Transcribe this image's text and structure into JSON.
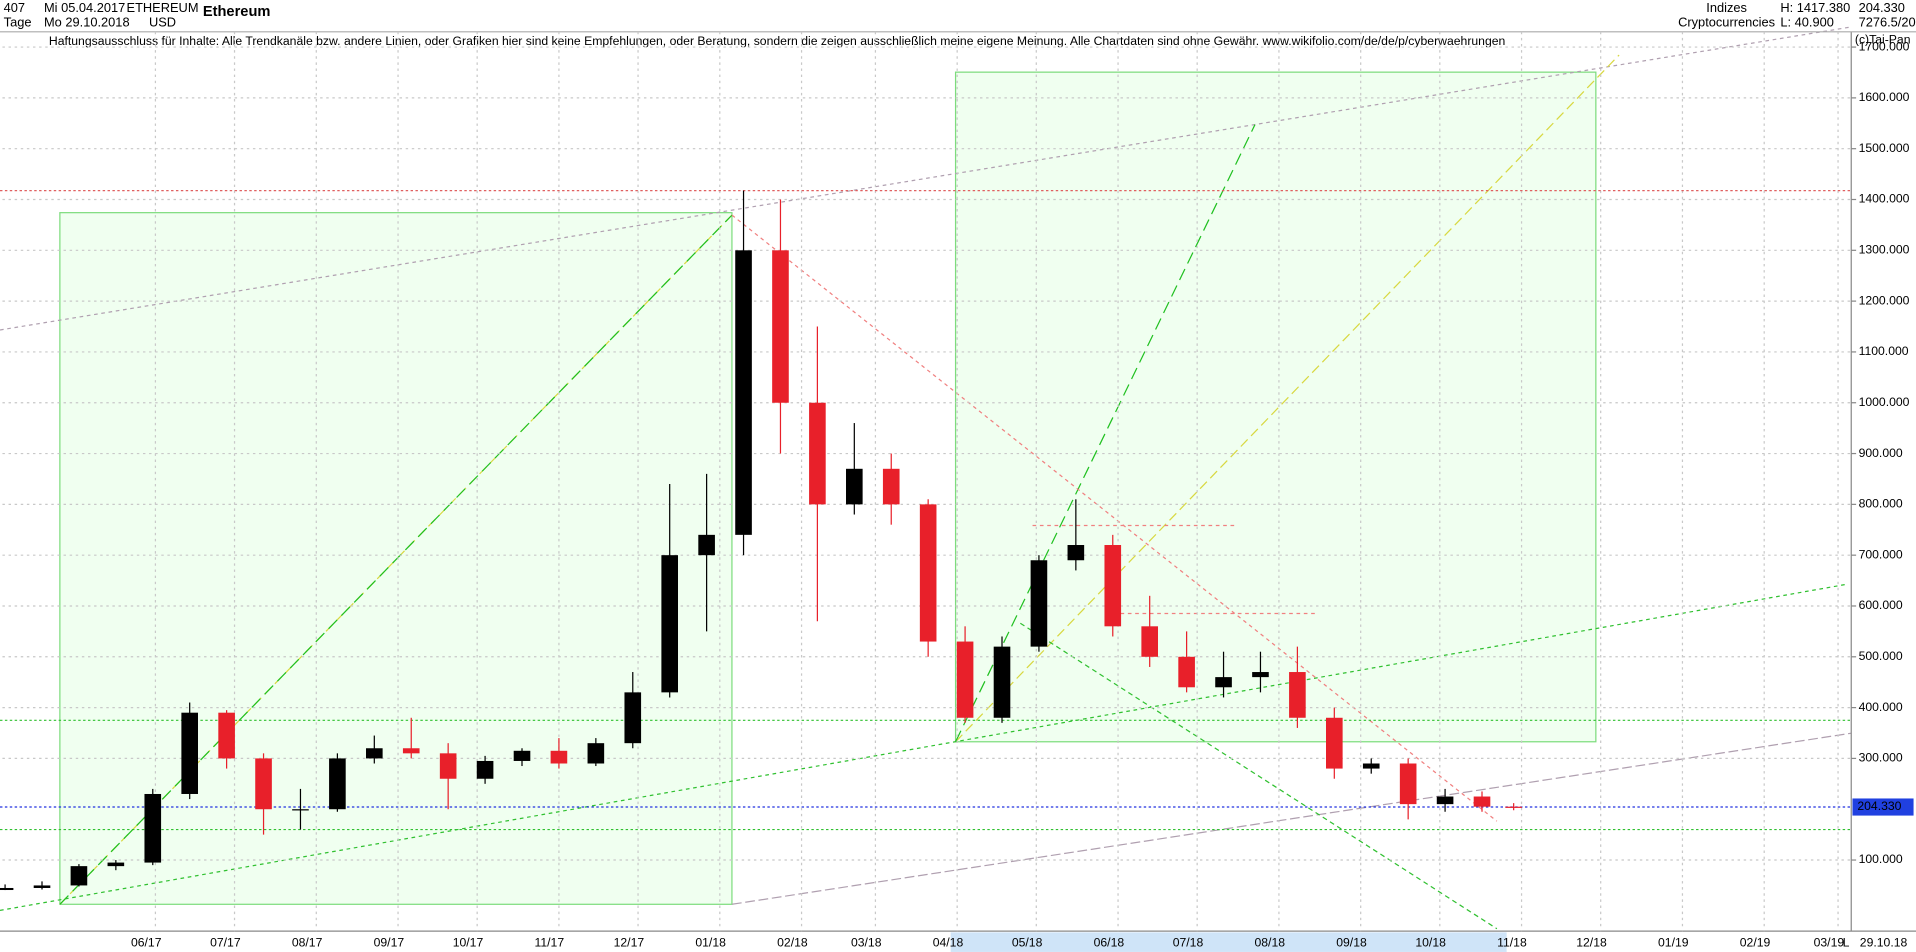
{
  "header": {
    "count": "407",
    "period": "Tage",
    "start": "Mi 05.04.2017",
    "end": "Mo 29.10.2018",
    "symbol": "ETHEREUM",
    "currency": "USD",
    "name": "Ethereum",
    "group": "Indizes",
    "subgroup": "Cryptocurrencies",
    "high": "H: 1417.380",
    "low": "L: 40.900",
    "price": "204.330",
    "volume": "7276.5/20",
    "disclaimer": "Haftungsausschluss für Inhalte: Alle Trendkanäle bzw. andere Linien, oder Grafiken hier sind keine Empfehlungen, oder Beratung, sondern die zeigen ausschließlich meine eigene Meinung. Alle Chartdaten sind ohne Gewähr.  www.wikifolio.com/de/de/p/cyberwaehrungen",
    "copyright": "(c)Tai-Pan",
    "scale": "L",
    "date": "29.10.18"
  },
  "chart_data": {
    "type": "candlestick",
    "x": [
      0,
      14,
      28,
      42,
      56,
      70,
      84,
      98,
      112,
      126,
      140,
      154,
      168,
      182,
      196,
      210,
      224,
      238,
      252,
      266,
      280,
      294,
      308,
      322,
      336,
      350,
      364,
      378,
      392,
      406,
      420,
      434,
      448,
      462,
      476,
      490,
      504,
      518,
      532,
      546,
      560,
      572
    ],
    "open": [
      41,
      45,
      50,
      88,
      95,
      230,
      390,
      300,
      200,
      200,
      300,
      320,
      310,
      260,
      295,
      315,
      290,
      330,
      430,
      700,
      740,
      1300,
      1000,
      800,
      870,
      800,
      530,
      380,
      520,
      690,
      720,
      560,
      500,
      440,
      460,
      470,
      380,
      280,
      290,
      210,
      225,
      205
    ],
    "high": [
      52,
      58,
      92,
      100,
      240,
      410,
      395,
      310,
      240,
      310,
      345,
      380,
      330,
      305,
      320,
      340,
      340,
      470,
      840,
      860,
      1417.38,
      1400,
      1150,
      960,
      900,
      810,
      560,
      540,
      700,
      810,
      740,
      620,
      550,
      510,
      510,
      520,
      400,
      300,
      300,
      240,
      235,
      212
    ],
    "low": [
      40.9,
      42,
      48,
      80,
      90,
      220,
      280,
      150,
      160,
      195,
      290,
      300,
      200,
      250,
      285,
      280,
      285,
      320,
      420,
      550,
      700,
      900,
      570,
      780,
      760,
      500,
      370,
      370,
      510,
      670,
      540,
      480,
      430,
      420,
      430,
      360,
      260,
      270,
      180,
      195,
      195,
      198
    ],
    "close": [
      45,
      50,
      88,
      95,
      230,
      390,
      300,
      200,
      200,
      300,
      320,
      310,
      260,
      295,
      315,
      290,
      330,
      430,
      700,
      740,
      1300,
      1000,
      800,
      870,
      800,
      530,
      380,
      520,
      690,
      720,
      560,
      500,
      440,
      460,
      470,
      380,
      280,
      290,
      210,
      225,
      205,
      204.33
    ],
    "up_color": "#000000",
    "down_color": "#e8202a",
    "xlim": [
      -1,
      700
    ],
    "xticks": [
      {
        "value": 57,
        "label": "06/17"
      },
      {
        "value": 87,
        "label": "07/17"
      },
      {
        "value": 118,
        "label": "08/17"
      },
      {
        "value": 149,
        "label": "09/17"
      },
      {
        "value": 179,
        "label": "10/17"
      },
      {
        "value": 210,
        "label": "11/17"
      },
      {
        "value": 240,
        "label": "12/17"
      },
      {
        "value": 271,
        "label": "01/18"
      },
      {
        "value": 302,
        "label": "02/18"
      },
      {
        "value": 330,
        "label": "03/18"
      },
      {
        "value": 361,
        "label": "04/18"
      },
      {
        "value": 391,
        "label": "05/18"
      },
      {
        "value": 422,
        "label": "06/18"
      },
      {
        "value": 452,
        "label": "07/18"
      },
      {
        "value": 483,
        "label": "08/18"
      },
      {
        "value": 514,
        "label": "09/18"
      },
      {
        "value": 544,
        "label": "10/18"
      },
      {
        "value": 575,
        "label": "11/18"
      },
      {
        "value": 605,
        "label": "12/18"
      },
      {
        "value": 636,
        "label": "01/19"
      },
      {
        "value": 667,
        "label": "02/19"
      },
      {
        "value": 695,
        "label": "03/19"
      }
    ],
    "ylim": [
      -40,
      1730
    ],
    "yticks": [
      {
        "value": 100,
        "label": "100.000"
      },
      {
        "value": 300,
        "label": "300.000"
      },
      {
        "value": 400,
        "label": "400.000"
      },
      {
        "value": 500,
        "label": "500.000"
      },
      {
        "value": 600,
        "label": "600.000"
      },
      {
        "value": 700,
        "label": "700.000"
      },
      {
        "value": 800,
        "label": "800.000"
      },
      {
        "value": 900,
        "label": "900.000"
      },
      {
        "value": 1000,
        "label": "1000.000"
      },
      {
        "value": 1100,
        "label": "1100.000"
      },
      {
        "value": 1200,
        "label": "1200.000"
      },
      {
        "value": 1300,
        "label": "1300.000"
      },
      {
        "value": 1400,
        "label": "1400.000"
      },
      {
        "value": 1500,
        "label": "1500.000"
      },
      {
        "value": 1600,
        "label": "1600.000"
      },
      {
        "value": 1700,
        "label": "1700.000"
      }
    ],
    "grid": true,
    "levels": [
      {
        "value": 1417.38,
        "color": "#e06060"
      },
      {
        "value": 375,
        "color": "#30c030"
      },
      {
        "value": 204.33,
        "color": "#2030e0"
      },
      {
        "value": 160,
        "color": "#30c030"
      }
    ],
    "last": {
      "value": 204.33,
      "label": "204.330",
      "color": "#2040e0"
    }
  }
}
